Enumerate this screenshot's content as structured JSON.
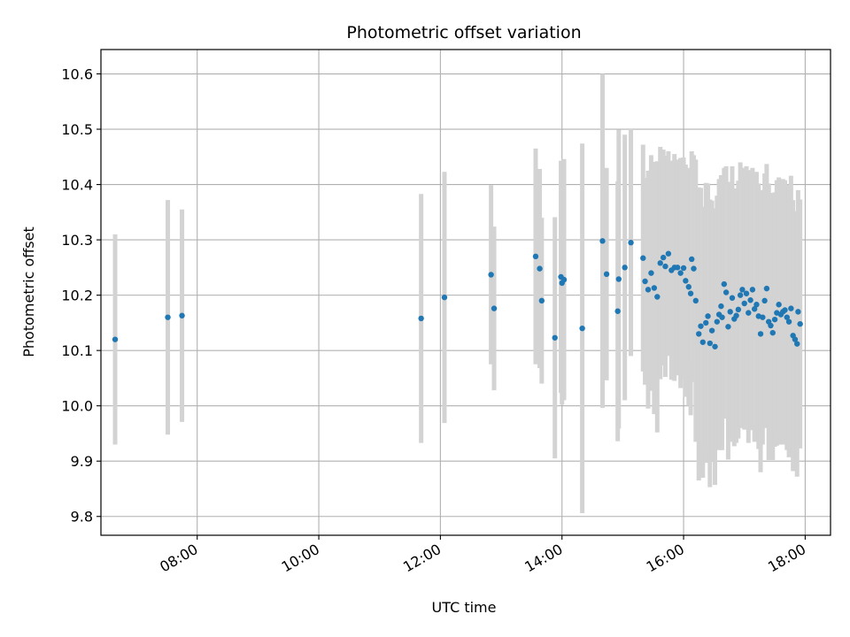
{
  "chart_data": {
    "type": "scatter",
    "title": "Photometric offset variation",
    "xlabel": "UTC time",
    "ylabel": "Photometric offset",
    "xlim": [
      "06:25",
      "18:25"
    ],
    "ylim": [
      9.766,
      10.644
    ],
    "xticks": [
      "08:00",
      "10:00",
      "12:00",
      "14:00",
      "16:00",
      "18:00"
    ],
    "yticks": [
      "9.8",
      "9.9",
      "10.0",
      "10.1",
      "10.2",
      "10.3",
      "10.4",
      "10.5",
      "10.6"
    ],
    "grid": true,
    "colors": {
      "marker": "#1f77b4",
      "errorbar": "#d3d3d3",
      "grid": "#b0b0b0"
    },
    "series": [
      {
        "x": [
          "06:39",
          "07:31",
          "07:45",
          "11:41",
          "12:04",
          "12:50",
          "12:53",
          "13:34",
          "13:38",
          "13:40",
          "13:53",
          "13:59",
          "14:00",
          "14:02",
          "14:20",
          "14:40",
          "14:44",
          "14:55",
          "14:56",
          "15:02",
          "15:08",
          "15:20",
          "15:22",
          "15:25",
          "15:28",
          "15:31",
          "15:34",
          "15:37",
          "15:40",
          "15:42",
          "15:45",
          "15:48",
          "15:51",
          "15:54",
          "15:57",
          "16:00",
          "16:02",
          "16:05",
          "16:07",
          "16:08",
          "16:10",
          "16:12",
          "16:15",
          "16:17",
          "16:19",
          "16:22",
          "16:24",
          "16:26",
          "16:28",
          "16:31",
          "16:33",
          "16:35",
          "16:37",
          "16:38",
          "16:40",
          "16:42",
          "16:44",
          "16:46",
          "16:48",
          "16:50",
          "16:52",
          "16:54",
          "16:56",
          "16:58",
          "17:00",
          "17:02",
          "17:04",
          "17:06",
          "17:08",
          "17:10",
          "17:12",
          "17:14",
          "17:16",
          "17:18",
          "17:20",
          "17:22",
          "17:24",
          "17:26",
          "17:28",
          "17:30",
          "17:32",
          "17:34",
          "17:36",
          "17:38",
          "17:40",
          "17:42",
          "17:44",
          "17:46",
          "17:48",
          "17:50",
          "17:52",
          "17:53",
          "17:55"
        ],
        "y": [
          10.12,
          10.16,
          10.163,
          10.158,
          10.196,
          10.237,
          10.176,
          10.27,
          10.248,
          10.19,
          10.123,
          10.233,
          10.222,
          10.228,
          10.14,
          10.298,
          10.238,
          10.171,
          10.229,
          10.25,
          10.295,
          10.267,
          10.225,
          10.21,
          10.24,
          10.213,
          10.197,
          10.258,
          10.268,
          10.252,
          10.275,
          10.245,
          10.25,
          10.25,
          10.24,
          10.249,
          10.226,
          10.215,
          10.203,
          10.265,
          10.248,
          10.19,
          10.13,
          10.144,
          10.115,
          10.15,
          10.162,
          10.113,
          10.136,
          10.107,
          10.152,
          10.165,
          10.18,
          10.16,
          10.22,
          10.205,
          10.143,
          10.17,
          10.195,
          10.157,
          10.163,
          10.174,
          10.2,
          10.21,
          10.185,
          10.203,
          10.168,
          10.191,
          10.21,
          10.175,
          10.183,
          10.162,
          10.13,
          10.16,
          10.19,
          10.212,
          10.152,
          10.145,
          10.132,
          10.156,
          10.168,
          10.183,
          10.165,
          10.17,
          10.173,
          10.16,
          10.152,
          10.176,
          10.127,
          10.12,
          10.112,
          10.17,
          10.148
        ],
        "yerr": [
          0.19,
          0.212,
          0.192,
          0.225,
          0.227,
          0.162,
          0.148,
          0.195,
          0.18,
          0.15,
          0.218,
          0.21,
          0.22,
          0.218,
          0.334,
          0.302,
          0.192,
          0.235,
          0.27,
          0.24,
          0.205,
          0.205,
          0.187,
          0.215,
          0.213,
          0.228,
          0.245,
          0.21,
          0.195,
          0.2,
          0.185,
          0.198,
          0.205,
          0.195,
          0.208,
          0.2,
          0.21,
          0.215,
          0.22,
          0.195,
          0.205,
          0.255,
          0.265,
          0.25,
          0.245,
          0.253,
          0.24,
          0.26,
          0.235,
          0.25,
          0.228,
          0.245,
          0.237,
          0.24,
          0.21,
          0.228,
          0.24,
          0.235,
          0.238,
          0.23,
          0.23,
          0.233,
          0.24,
          0.22,
          0.228,
          0.23,
          0.235,
          0.235,
          0.22,
          0.24,
          0.24,
          0.24,
          0.25,
          0.23,
          0.23,
          0.225,
          0.25,
          0.24,
          0.23,
          0.23,
          0.24,
          0.23,
          0.235,
          0.24,
          0.235,
          0.24,
          0.245,
          0.24,
          0.245,
          0.22,
          0.24,
          0.22,
          0.225
        ]
      }
    ]
  }
}
